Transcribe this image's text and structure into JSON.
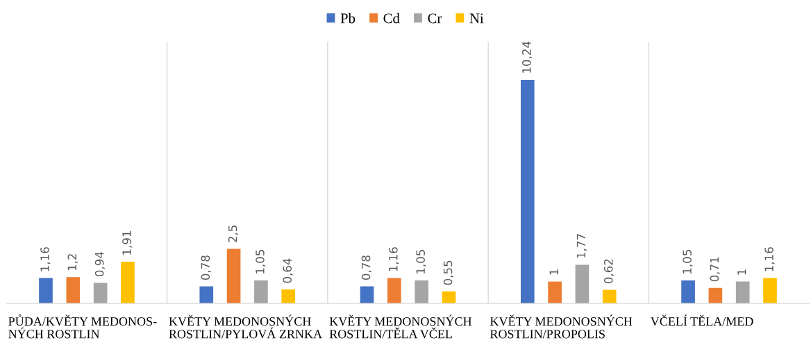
{
  "chart_data": {
    "type": "bar",
    "categories": [
      "PŮDA/KVĚTY MEDONOS-\nNÝCH ROSTLIN",
      "KVĚTY MEDONOSNÝCH\nROSTLIN/PYLOVÁ ZRNKA",
      "KVĚTY MEDONOSNÝCH\nROSTLIN/TĚLA VČEL",
      "KVĚTY MEDONOSNÝCH\nROSTLIN/PROPOLIS",
      "VČELÍ TĚLA/MED"
    ],
    "series": [
      {
        "name": "Pb",
        "color": "#4472c4",
        "values": [
          1.16,
          0.78,
          0.78,
          10.24,
          1.05
        ],
        "value_labels": [
          "1,16",
          "0,78",
          "0,78",
          "10,24",
          "1,05"
        ]
      },
      {
        "name": "Cd",
        "color": "#ed7d31",
        "values": [
          1.2,
          2.5,
          1.16,
          1,
          0.71
        ],
        "value_labels": [
          "1,2",
          "2,5",
          "1,16",
          "1",
          "0,71"
        ]
      },
      {
        "name": "Cr",
        "color": "#a5a5a5",
        "values": [
          0.94,
          1.05,
          1.05,
          1.77,
          1
        ],
        "value_labels": [
          "0,94",
          "1,05",
          "1,05",
          "1,77",
          "1"
        ]
      },
      {
        "name": "Ni",
        "color": "#ffc000",
        "values": [
          1.91,
          0.64,
          0.55,
          0.62,
          1.16
        ],
        "value_labels": [
          "1,91",
          "0,64",
          "0,55",
          "0,62",
          "1,16"
        ]
      }
    ],
    "grid": "x",
    "legend": "top"
  }
}
